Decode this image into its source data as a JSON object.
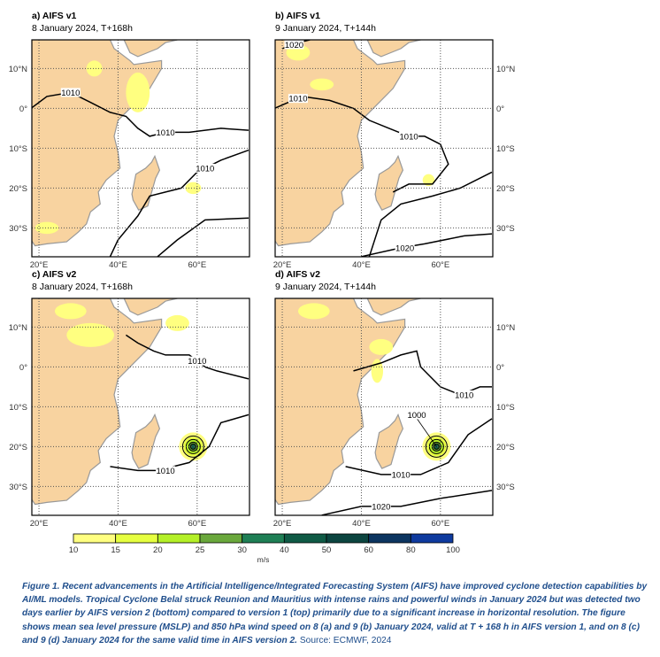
{
  "panels": [
    {
      "id": "a",
      "title": "a) AIFS v1",
      "subtitle": "8 January 2024, T+168h",
      "contour_labels": [
        "1010",
        "1010",
        "1010"
      ]
    },
    {
      "id": "b",
      "title": "b) AIFS v1",
      "subtitle": "9 January 2024, T+144h",
      "contour_labels": [
        "1010",
        "1010",
        "1020",
        "1020"
      ]
    },
    {
      "id": "c",
      "title": "c) AIFS v2",
      "subtitle": "8 January 2024, T+168h",
      "contour_labels": [
        "1010",
        "1010"
      ]
    },
    {
      "id": "d",
      "title": "d) AIFS v2",
      "subtitle": "9 January 2024, T+144h",
      "contour_labels": [
        "1010",
        "1010",
        "1020",
        "1000"
      ]
    }
  ],
  "lat_labels": [
    "10°N",
    "0°",
    "10°S",
    "20°S",
    "30°S"
  ],
  "lon_labels": [
    "20°E",
    "40°E",
    "60°E"
  ],
  "colorbar": {
    "ticks": [
      "10",
      "15",
      "20",
      "25",
      "30",
      "40",
      "50",
      "60",
      "80",
      "100"
    ],
    "unit": "m/s",
    "colors": [
      "#ffff80",
      "#e6ff40",
      "#b4f028",
      "#6aa83c",
      "#1f7f55",
      "#0f5a45",
      "#0c4540",
      "#0c3560",
      "#0e3a9e"
    ]
  },
  "colors": {
    "land": "#f8d3a0",
    "coast": "#999999",
    "caption": "#1f4e8c"
  },
  "caption": {
    "text": "Figure 1. Recent advancements in the Artificial Intelligence/Integrated Forecasting System (AIFS) have improved cyclone detection capabilities by AI/ML models. Tropical Cyclone Belal struck Reunion and Mauritius with intense rains and powerful winds in January 2024 but was detected two days earlier by AIFS version 2 (bottom) compared to version 1 (top) primarily due to a significant increase in horizontal resolution. The figure shows mean sea level pressure (MSLP) and 850 hPa wind speed on 8 (a) and 9 (b) January 2024, valid at T + 168 h in AIFS version 1, and on 8 (c) and 9 (d) January 2024 for the same valid time in AIFS version 2.",
    "source": "Source: ECMWF, 2024"
  }
}
